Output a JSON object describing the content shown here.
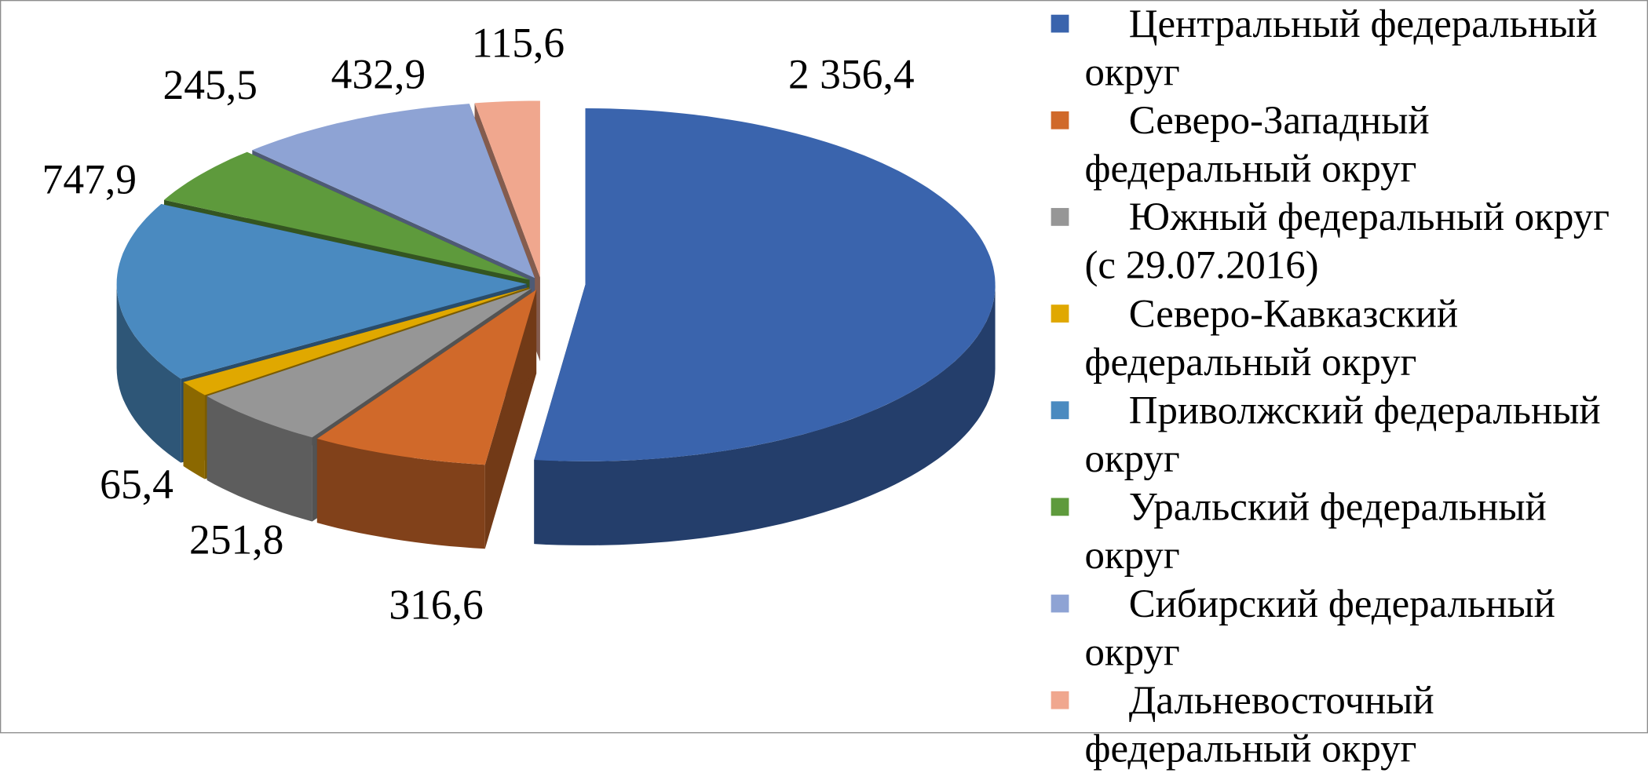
{
  "chart_data": {
    "type": "pie3d",
    "categories": [
      "Центральный федеральный округ",
      "Северо-Западный федеральный округ",
      "Южный федеральный округ (с 29.07.2016)",
      "Северо-Кавказский федеральный округ",
      "Приволжский федеральный округ",
      "Уральский федеральный округ",
      "Сибирский федеральный округ",
      "Дальневосточный федеральный округ"
    ],
    "values": [
      2356.4,
      316.6,
      251.8,
      65.4,
      747.9,
      245.5,
      432.9,
      115.6
    ],
    "value_labels": [
      "2 356,4",
      "316,6",
      "251,8",
      "65,4",
      "747,9",
      "245,5",
      "432,9",
      "115,6"
    ],
    "colors": [
      "#3a64ad",
      "#d0692a",
      "#969696",
      "#e0a800",
      "#4a8ac0",
      "#5e9a3c",
      "#8ea3d4",
      "#f0a78e"
    ],
    "legend": "right"
  }
}
